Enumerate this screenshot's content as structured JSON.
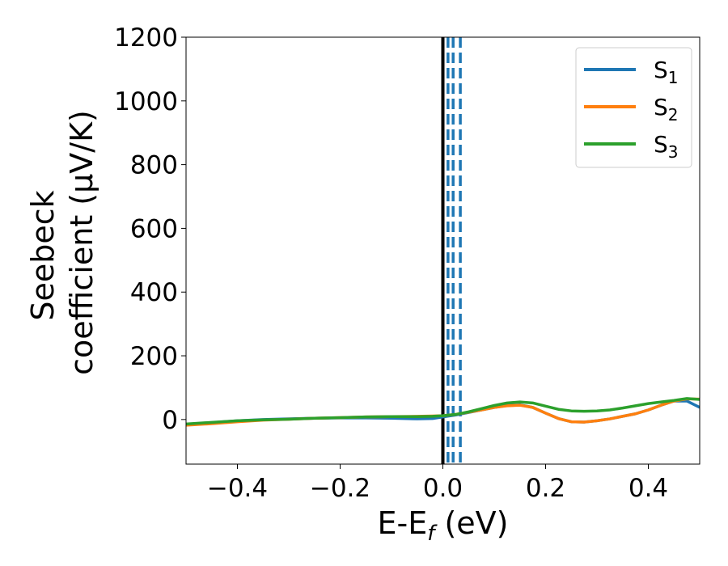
{
  "chart_data": {
    "type": "line",
    "xlabel": "E-E_f (eV)",
    "ylabel_line1": "Seebeck",
    "ylabel_line2": "coefficient  (μV/K)",
    "xlim": [
      -0.5,
      0.5
    ],
    "ylim": [
      -140,
      1200
    ],
    "xticks": [
      -0.4,
      -0.2,
      0.0,
      0.2,
      0.4
    ],
    "xtick_labels": [
      "−0.4",
      "−0.2",
      "0.0",
      "0.2",
      "0.4"
    ],
    "yticks": [
      0,
      200,
      400,
      600,
      800,
      1000,
      1200
    ],
    "ytick_labels": [
      "0",
      "200",
      "400",
      "600",
      "800",
      "1000",
      "1200"
    ],
    "grid": false,
    "legend_position": "top-right",
    "vertical_lines": [
      {
        "x": 0.0,
        "color": "#000000",
        "style": "solid"
      },
      {
        "x": 0.01,
        "color": "#1f77b4",
        "style": "dashed"
      },
      {
        "x": 0.02,
        "color": "#1f77b4",
        "style": "dashed"
      },
      {
        "x": 0.034,
        "color": "#1f77b4",
        "style": "dashed"
      }
    ],
    "series": [
      {
        "name": "S1",
        "legend_main": "S",
        "legend_sub": "1",
        "color": "#1f77b4",
        "x": [
          -0.5,
          -0.45,
          -0.4,
          -0.35,
          -0.3,
          -0.25,
          -0.2,
          -0.15,
          -0.1,
          -0.05,
          -0.02,
          0.0,
          0.025,
          0.05,
          0.075,
          0.1,
          0.125,
          0.15,
          0.175,
          0.2,
          0.225,
          0.25,
          0.275,
          0.3,
          0.325,
          0.35,
          0.375,
          0.4,
          0.425,
          0.45,
          0.475,
          0.5
        ],
        "y": [
          -15,
          -10,
          -4,
          0,
          2,
          4,
          5,
          5,
          4,
          2,
          3,
          8,
          14,
          22,
          30,
          38,
          44,
          46,
          38,
          20,
          3,
          -7,
          -8,
          -4,
          2,
          10,
          18,
          30,
          45,
          58,
          58,
          38
        ]
      },
      {
        "name": "S2",
        "legend_main": "S",
        "legend_sub": "2",
        "color": "#ff7f0e",
        "x": [
          -0.5,
          -0.45,
          -0.4,
          -0.35,
          -0.3,
          -0.25,
          -0.2,
          -0.15,
          -0.1,
          -0.05,
          -0.02,
          0.0,
          0.025,
          0.05,
          0.075,
          0.1,
          0.125,
          0.15,
          0.175,
          0.2,
          0.225,
          0.25,
          0.275,
          0.3,
          0.325,
          0.35,
          0.375,
          0.4,
          0.425,
          0.45,
          0.475,
          0.5
        ],
        "y": [
          -18,
          -13,
          -7,
          -2,
          1,
          4,
          6,
          8,
          9,
          10,
          11,
          12,
          16,
          23,
          30,
          38,
          43,
          45,
          38,
          20,
          3,
          -7,
          -8,
          -4,
          2,
          10,
          18,
          30,
          45,
          58,
          65,
          64
        ]
      },
      {
        "name": "S3",
        "legend_main": "S",
        "legend_sub": "3",
        "color": "#2ca02c",
        "x": [
          -0.5,
          -0.45,
          -0.4,
          -0.35,
          -0.3,
          -0.25,
          -0.2,
          -0.15,
          -0.1,
          -0.05,
          -0.02,
          0.0,
          0.025,
          0.05,
          0.075,
          0.1,
          0.125,
          0.15,
          0.175,
          0.2,
          0.225,
          0.25,
          0.275,
          0.3,
          0.325,
          0.35,
          0.375,
          0.4,
          0.425,
          0.45,
          0.475,
          0.5
        ],
        "y": [
          -14,
          -9,
          -4,
          -1,
          1,
          4,
          6,
          8,
          9,
          9,
          10,
          12,
          16,
          24,
          34,
          44,
          52,
          55,
          52,
          42,
          32,
          27,
          26,
          27,
          30,
          36,
          43,
          50,
          55,
          60,
          66,
          63
        ]
      }
    ]
  }
}
